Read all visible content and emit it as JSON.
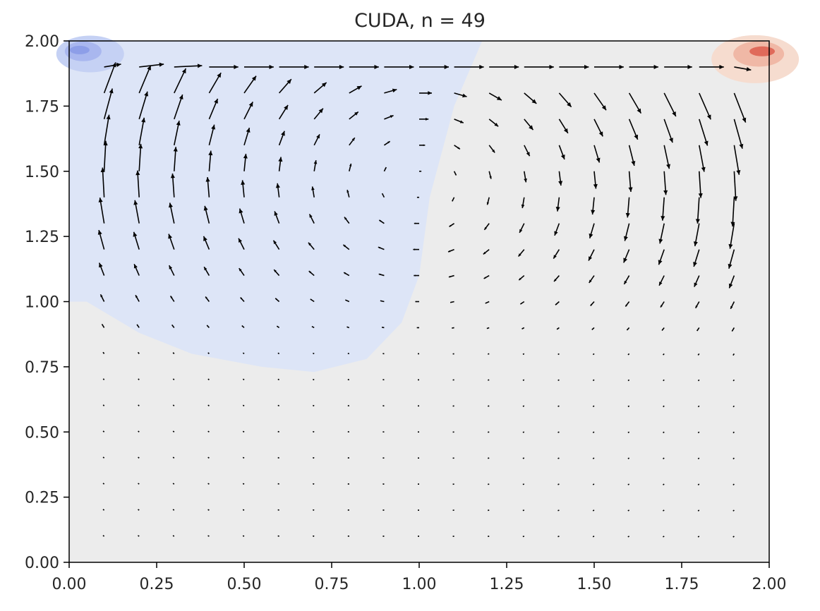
{
  "chart_data": {
    "type": "quiver",
    "title": "CUDA, n = 49",
    "xlabel": "",
    "ylabel": "",
    "xlim": [
      0.0,
      2.0
    ],
    "ylim": [
      0.0,
      2.0
    ],
    "grid": false,
    "legend": "none",
    "xticks": [
      "0.00",
      "0.25",
      "0.50",
      "0.75",
      "1.00",
      "1.25",
      "1.50",
      "1.75",
      "2.00"
    ],
    "yticks": [
      "0.00",
      "0.25",
      "0.50",
      "0.75",
      "1.00",
      "1.25",
      "1.50",
      "1.75",
      "2.00"
    ],
    "arrow_grid": {
      "x": [
        0.1,
        0.2,
        0.3,
        0.4,
        0.5,
        0.6,
        0.7,
        0.8,
        0.9,
        1.0,
        1.1,
        1.2,
        1.3,
        1.4,
        1.5,
        1.6,
        1.7,
        1.8,
        1.9
      ],
      "y": [
        0.1,
        0.2,
        0.3,
        0.4,
        0.5,
        0.6,
        0.7,
        0.8,
        0.9,
        1.0,
        1.1,
        1.2,
        1.3,
        1.4,
        1.5,
        1.6,
        1.7,
        1.8,
        1.9
      ],
      "direction": "clockwise cavity vortex with center near (1.0, 1.45)",
      "max_speed_row_y": 1.9
    },
    "contour_regions": [
      {
        "name": "low",
        "color": "#dde5f7",
        "x_range": [
          0.0,
          1.18
        ],
        "y_range": [
          0.73,
          2.0
        ]
      },
      {
        "name": "min",
        "color": "#8d9ee8",
        "x": 0.05,
        "y": 1.96
      },
      {
        "name": "max",
        "color": "#e06a5a",
        "x": 1.95,
        "y": 1.96
      }
    ],
    "colors": {
      "background": "#ececec",
      "arrow": "#000000",
      "axis": "#000000"
    }
  }
}
